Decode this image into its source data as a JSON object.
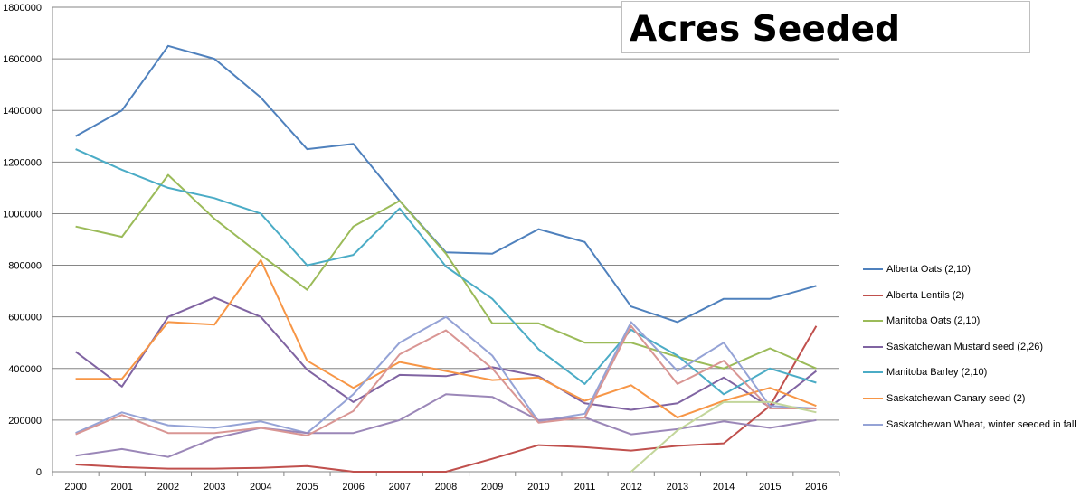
{
  "chart_data": {
    "type": "line",
    "title": "Acres Seeded",
    "xlabel": "",
    "ylabel": "",
    "x": [
      "2000",
      "2001",
      "2002",
      "2003",
      "2004",
      "2005",
      "2006",
      "2007",
      "2008",
      "2009",
      "2010",
      "2011",
      "2012",
      "2013",
      "2014",
      "2015",
      "2016"
    ],
    "ylim": [
      0,
      1800000
    ],
    "yticks": [
      "0",
      "200000",
      "400000",
      "600000",
      "800000",
      "1000000",
      "1200000",
      "1400000",
      "1600000",
      "1800000"
    ],
    "grid": true,
    "legend_position": "right",
    "series": [
      {
        "name": "Alberta Oats (2,10)",
        "color": "#4f81bd",
        "values": [
          1300000,
          1400000,
          1650000,
          1600000,
          1450000,
          1250000,
          1270000,
          1050000,
          850000,
          845000,
          940000,
          890000,
          640000,
          580000,
          670000,
          670000,
          720000
        ]
      },
      {
        "name": "Alberta Lentils (2)",
        "color": "#c0504d",
        "values": [
          28000,
          18000,
          12000,
          12000,
          15000,
          22000,
          0,
          0,
          0,
          50000,
          103000,
          95000,
          82000,
          100000,
          110000,
          255000,
          565000
        ]
      },
      {
        "name": "Manitoba Oats (2,10)",
        "color": "#9bbb59",
        "values": [
          950000,
          910000,
          1150000,
          980000,
          840000,
          705000,
          950000,
          1050000,
          845000,
          575000,
          575000,
          500000,
          500000,
          445000,
          400000,
          478000,
          400000
        ]
      },
      {
        "name": "Saskatchewan Mustard seed (2,26)",
        "color": "#8064a2",
        "values": [
          465000,
          330000,
          600000,
          675000,
          600000,
          395000,
          270000,
          375000,
          370000,
          405000,
          370000,
          265000,
          240000,
          265000,
          365000,
          250000,
          390000
        ]
      },
      {
        "name": "Manitoba Barley (2,10)",
        "color": "#4bacc6",
        "values": [
          1250000,
          1170000,
          1100000,
          1060000,
          1000000,
          800000,
          840000,
          1020000,
          795000,
          670000,
          475000,
          340000,
          550000,
          450000,
          300000,
          400000,
          345000
        ]
      },
      {
        "name": "Saskatchewan Canary seed (2)",
        "color": "#f79646",
        "values": [
          360000,
          360000,
          580000,
          570000,
          820000,
          430000,
          325000,
          425000,
          390000,
          355000,
          365000,
          275000,
          335000,
          210000,
          275000,
          325000,
          255000
        ]
      },
      {
        "name": "Saskatchewan Wheat, winter seeded in fall",
        "color": "#95a3d6",
        "values": [
          150000,
          230000,
          180000,
          170000,
          195000,
          150000,
          300000,
          500000,
          600000,
          450000,
          195000,
          225000,
          580000,
          390000,
          500000,
          255000,
          245000
        ]
      },
      {
        "name": "",
        "color": "#9b87b8",
        "values": [
          62000,
          88000,
          57000,
          130000,
          170000,
          150000,
          150000,
          200000,
          300000,
          290000,
          200000,
          210000,
          145000,
          165000,
          195000,
          170000,
          200000
        ]
      },
      {
        "name": "",
        "color": "#d99694",
        "values": [
          145000,
          220000,
          150000,
          150000,
          170000,
          140000,
          235000,
          455000,
          548000,
          400000,
          190000,
          210000,
          565000,
          340000,
          430000,
          245000,
          245000
        ]
      },
      {
        "name": "",
        "color": "#c3d69b",
        "values": [
          null,
          null,
          null,
          null,
          null,
          null,
          null,
          null,
          null,
          null,
          null,
          null,
          0,
          160000,
          270000,
          270000,
          230000
        ]
      }
    ]
  }
}
